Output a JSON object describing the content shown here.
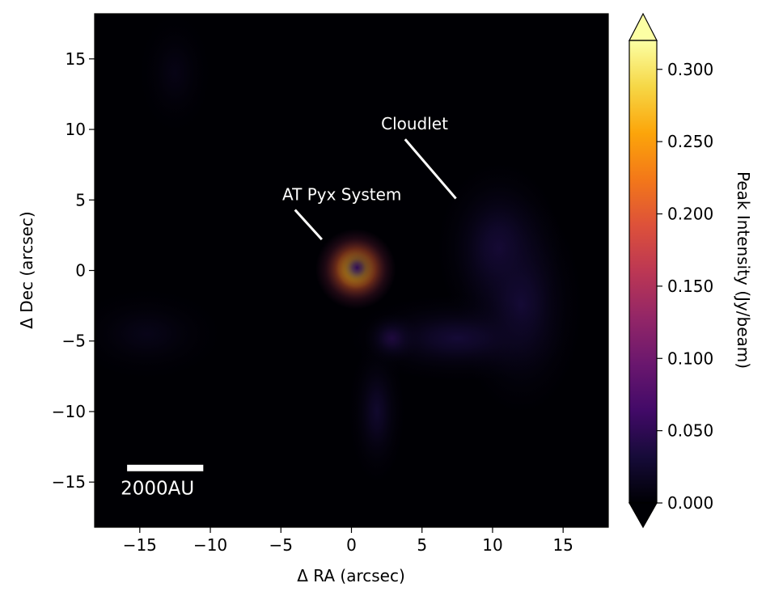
{
  "chart_data": {
    "type": "heatmap",
    "title": "",
    "xlabel": "Δ RA (arcsec)",
    "ylabel": "Δ Dec (arcsec)",
    "xlim": [
      -18.2,
      18.2
    ],
    "ylim": [
      -18.2,
      18.2
    ],
    "xticks": [
      -15,
      -10,
      -5,
      0,
      5,
      10,
      15
    ],
    "yticks": [
      -15,
      -10,
      -5,
      0,
      5,
      10,
      15
    ],
    "xtick_labels": [
      "−15",
      "−10",
      "−5",
      "0",
      "5",
      "10",
      "15"
    ],
    "ytick_labels": [
      "−15",
      "−10",
      "−5",
      "0",
      "5",
      "10",
      "15"
    ],
    "colormap": "inferno",
    "colorbar": {
      "label": "Peak Intensity (Jy/beam)",
      "range": [
        0.0,
        0.32
      ],
      "extend": "both",
      "ticks": [
        0.0,
        0.05,
        0.1,
        0.15,
        0.2,
        0.25,
        0.3
      ],
      "tick_labels": [
        "0.000",
        "0.050",
        "0.100",
        "0.150",
        "0.200",
        "0.250",
        "0.300"
      ]
    },
    "grid": false,
    "emission_features": [
      {
        "x": 0.3,
        "y": 0.1,
        "sx": 1.3,
        "sy": 1.3,
        "peak": 0.3
      },
      {
        "x": 0.4,
        "y": 0.2,
        "sx": 0.6,
        "sy": 0.6,
        "peak": 0.05
      },
      {
        "x": 2.9,
        "y": -4.8,
        "sx": 0.9,
        "sy": 0.8,
        "peak": 0.045
      },
      {
        "x": 1.8,
        "y": -10.0,
        "sx": 0.9,
        "sy": 2.3,
        "peak": 0.025
      },
      {
        "x": 10.5,
        "y": 1.5,
        "sx": 2.0,
        "sy": 2.8,
        "peak": 0.035
      },
      {
        "x": 12.0,
        "y": -2.5,
        "sx": 2.0,
        "sy": 3.5,
        "peak": 0.03
      },
      {
        "x": 7.5,
        "y": -4.8,
        "sx": 3.5,
        "sy": 1.4,
        "peak": 0.03
      },
      {
        "x": -14.5,
        "y": -4.5,
        "sx": 2.5,
        "sy": 1.5,
        "peak": 0.012
      },
      {
        "x": -12.5,
        "y": 14.0,
        "sx": 1.2,
        "sy": 2.0,
        "peak": 0.01
      }
    ],
    "annotations": [
      {
        "text": "AT Pyx System",
        "text_x": -4.9,
        "text_y": 5.0,
        "line_from": [
          -4.0,
          4.3
        ],
        "line_to": [
          -2.1,
          2.2
        ]
      },
      {
        "text": "Cloudlet",
        "text_x": 2.1,
        "text_y": 10.0,
        "line_from": [
          3.8,
          9.3
        ],
        "line_to": [
          7.4,
          5.1
        ]
      }
    ],
    "scalebar": {
      "label": "2000AU",
      "x_start": -15.9,
      "x_end": -10.5,
      "y": -14.0
    }
  }
}
